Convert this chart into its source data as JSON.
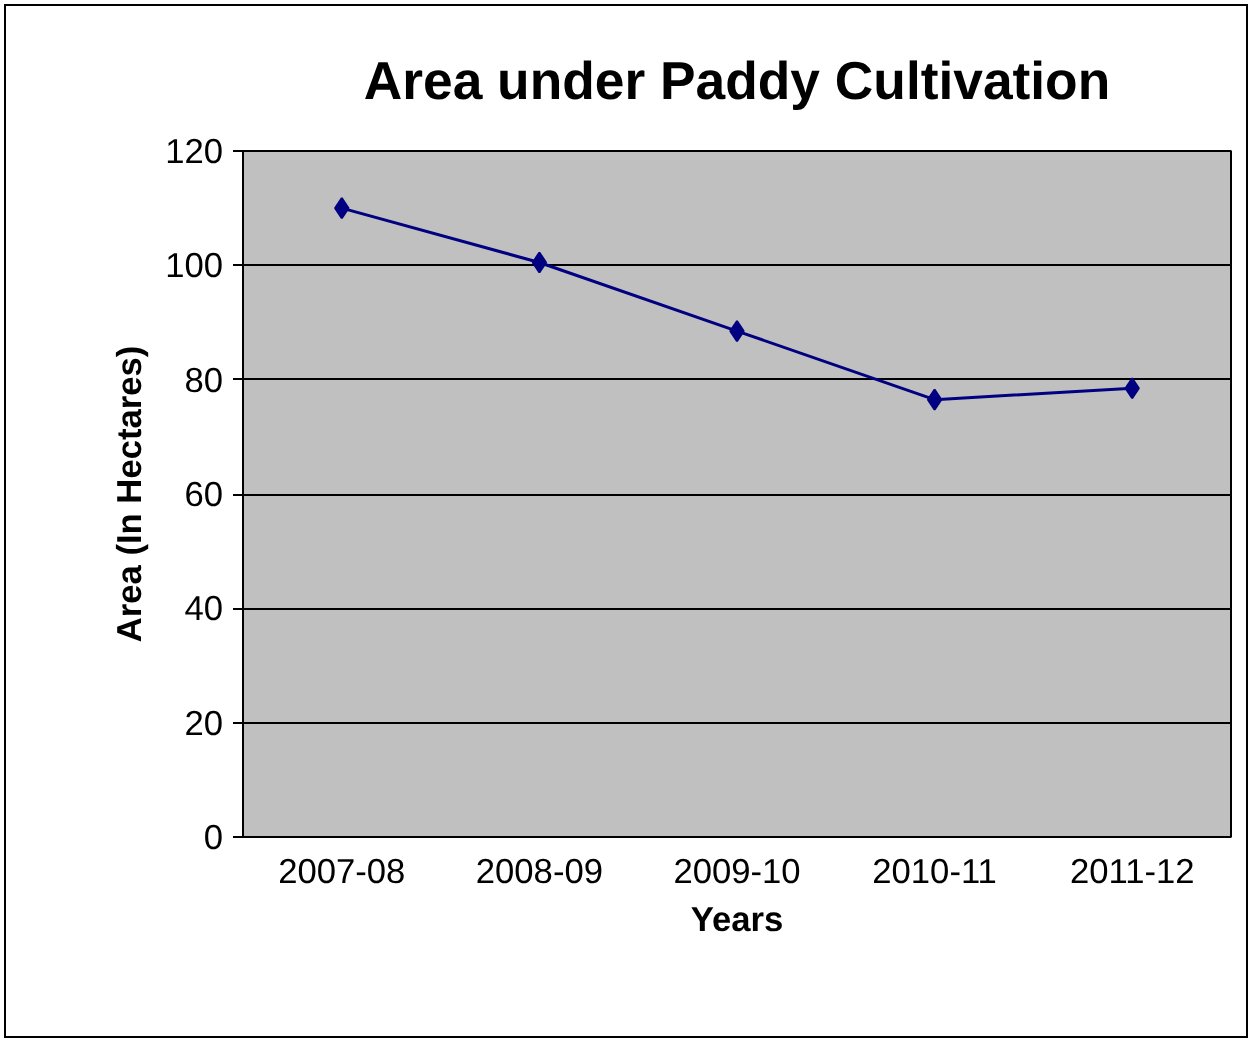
{
  "chart_data": {
    "type": "line",
    "title": "Area under Paddy Cultivation",
    "xlabel": "Years",
    "ylabel": "Area (In Hectares)",
    "categories": [
      "2007-08",
      "2008-09",
      "2009-10",
      "2010-11",
      "2011-12"
    ],
    "series": [
      {
        "color": "#000080",
        "values": [
          110,
          100.5,
          88.5,
          76.5,
          78.5
        ]
      }
    ],
    "ylim": [
      0,
      120
    ],
    "yticks": [
      0,
      20,
      40,
      60,
      80,
      100,
      120
    ],
    "grid": "y",
    "marker": "diamond",
    "line_style": "solid"
  }
}
